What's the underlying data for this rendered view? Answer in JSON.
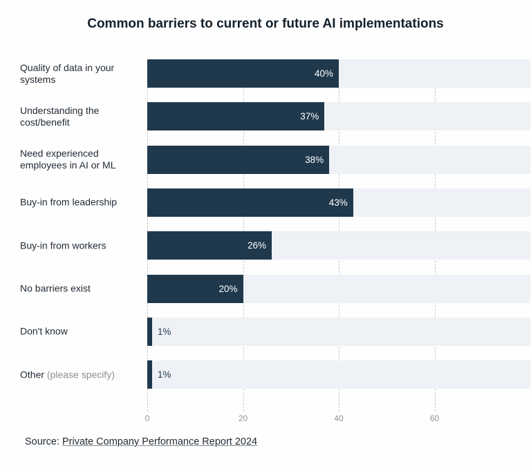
{
  "chart_data": {
    "type": "bar",
    "orientation": "horizontal",
    "title": "Common barriers to current or future AI implementations",
    "categories": [
      {
        "main": "Quality of data in your systems",
        "muted": ""
      },
      {
        "main": "Understanding the cost/benefit",
        "muted": ""
      },
      {
        "main": "Need experienced employees in AI or ML",
        "muted": ""
      },
      {
        "main": "Buy-in from leadership",
        "muted": ""
      },
      {
        "main": "Buy-in from workers",
        "muted": ""
      },
      {
        "main": "No barriers exist",
        "muted": ""
      },
      {
        "main": "Don't know",
        "muted": ""
      },
      {
        "main": "Other",
        "muted": "(please specify)"
      }
    ],
    "values": [
      40,
      37,
      38,
      43,
      26,
      20,
      1,
      1
    ],
    "value_labels": [
      "40%",
      "37%",
      "38%",
      "43%",
      "26%",
      "20%",
      "1%",
      "1%"
    ],
    "xlim": [
      0,
      80
    ],
    "xticks": [
      "0",
      "20",
      "40",
      "60"
    ],
    "tick_values": [
      0,
      20,
      40,
      60
    ],
    "grid": true,
    "colors": {
      "bar": "#1f384c",
      "track": "#eef1f5"
    }
  },
  "source": {
    "label": "Source:",
    "link": "Private Company Performance Report 2024"
  }
}
